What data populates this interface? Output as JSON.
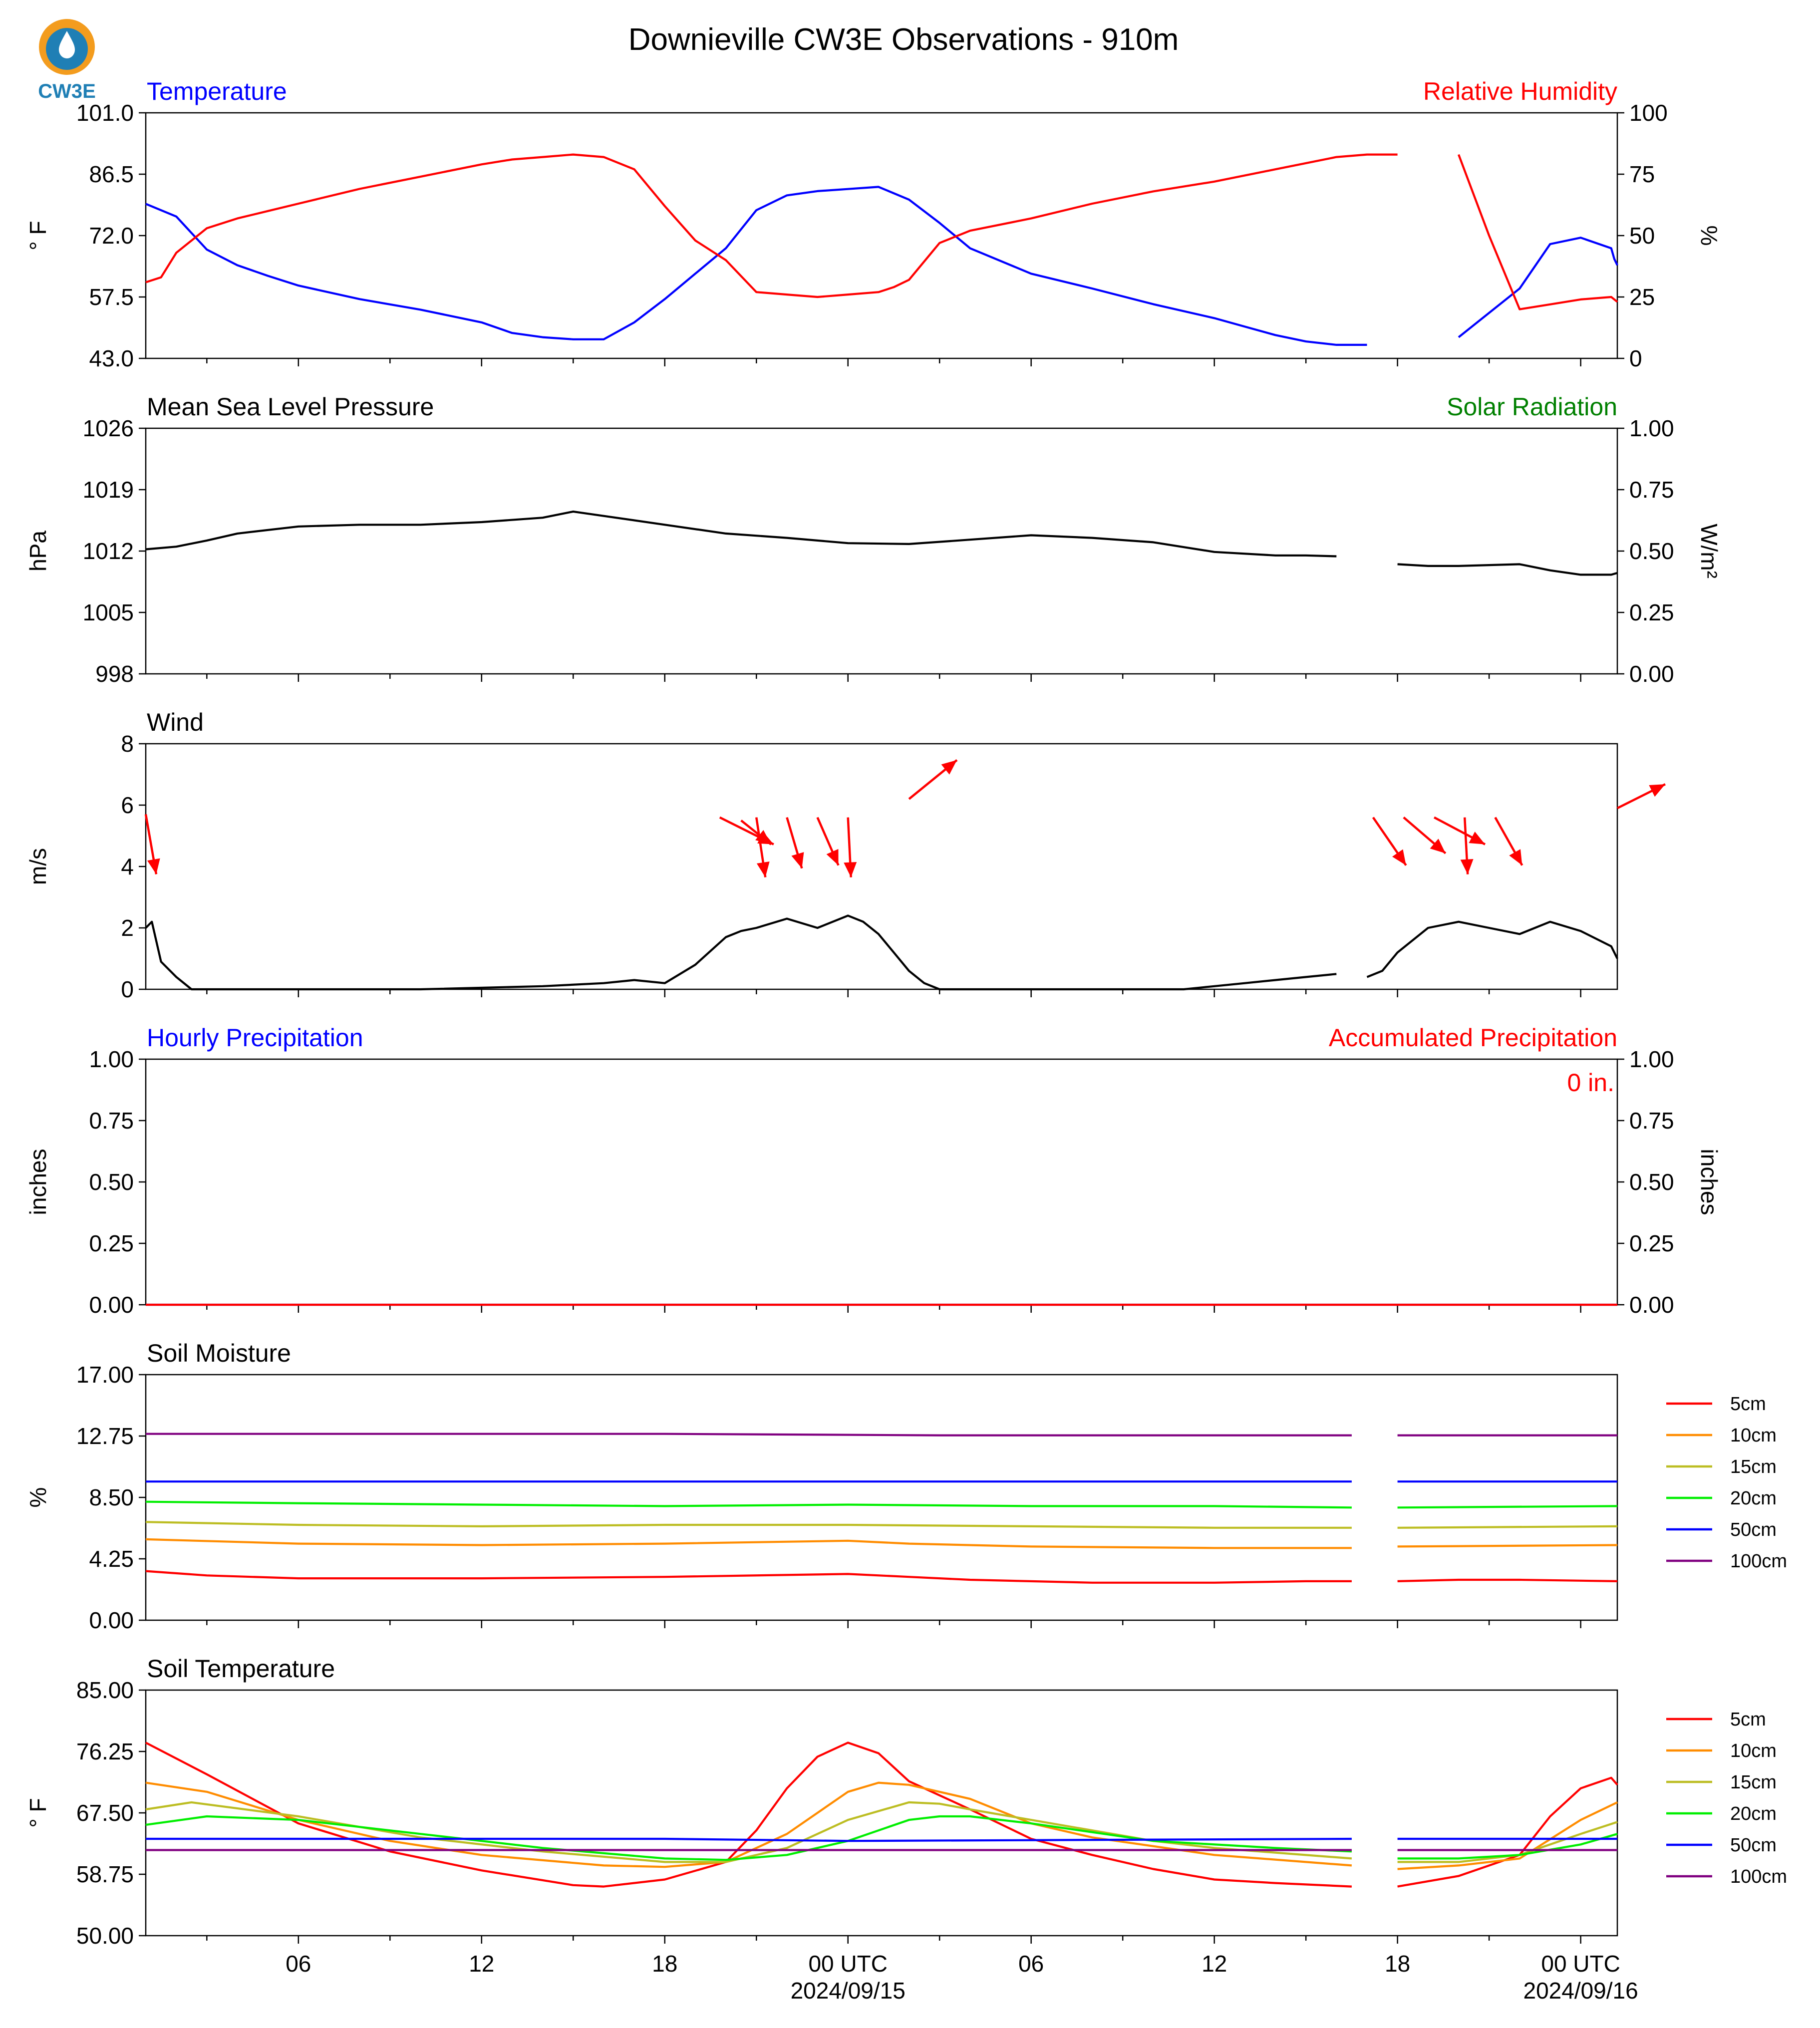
{
  "page": {
    "title": "Downieville CW3E Observations - 910m",
    "logo_text": "CW3E"
  },
  "colors": {
    "temperature": "#0000ff",
    "humidity": "#ff0000",
    "pressure": "#000000",
    "solar": "#008000",
    "wind_arrow": "#ff0000",
    "hourly_precip": "#0000ff",
    "accum_precip": "#ff0000",
    "logo_orange": "#f39c1e",
    "logo_blue": "#1f7fb5"
  },
  "x_axis": {
    "ticks": [
      {
        "hour": 6,
        "label": "06"
      },
      {
        "hour": 12,
        "label": "12"
      },
      {
        "hour": 18,
        "label": "18"
      },
      {
        "hour": 24,
        "label": "00 UTC",
        "sublabel": "2024/09/15"
      },
      {
        "hour": 30,
        "label": "06"
      },
      {
        "hour": 36,
        "label": "12"
      },
      {
        "hour": 42,
        "label": "18"
      },
      {
        "hour": 48,
        "label": "00 UTC",
        "sublabel": "2024/09/16"
      }
    ]
  },
  "chart_data": [
    {
      "type": "line",
      "title_left": "Temperature",
      "title_right": "Relative Humidity",
      "ylabel": "° F",
      "ylabel_right": "%",
      "ylim": [
        43.0,
        101.0
      ],
      "ylim_right": [
        0,
        100
      ],
      "yticks": [
        "43.0",
        "57.5",
        "72.0",
        "86.5",
        "101.0"
      ],
      "yticks_right": [
        "0",
        "25",
        "50",
        "75",
        "100"
      ],
      "series": [
        {
          "name": "Temperature",
          "axis": "left",
          "color": "#0000ff",
          "x": [
            1,
            2,
            3,
            4,
            5,
            6,
            8,
            10,
            12,
            13,
            14,
            15,
            16,
            17,
            18,
            19,
            20,
            21,
            22,
            23,
            24,
            25,
            26,
            27,
            28,
            30,
            32,
            34,
            36,
            37,
            38,
            39,
            40,
            41,
            42,
            44,
            46,
            47,
            48,
            49,
            49.1,
            49.2
          ],
          "y": [
            79.5,
            76.5,
            68.7,
            65.0,
            62.5,
            60.2,
            57.0,
            54.5,
            51.5,
            49.0,
            48.0,
            47.5,
            47.5,
            51.5,
            57.0,
            63.0,
            69.0,
            78.0,
            81.5,
            82.5,
            83.0,
            83.5,
            80.5,
            75.0,
            69.0,
            63.0,
            59.5,
            55.8,
            52.5,
            50.5,
            48.5,
            47.0,
            46.2,
            46.2,
            null,
            48.0,
            59.5,
            70.0,
            71.5,
            69.0,
            66.5,
            65.0
          ]
        },
        {
          "name": "Relative Humidity",
          "axis": "right",
          "color": "#ff0000",
          "x": [
            1,
            1.5,
            2,
            3,
            4,
            5,
            6,
            8,
            10,
            12,
            13,
            14,
            15,
            16,
            17,
            18,
            19,
            20,
            21,
            22,
            23,
            24,
            25,
            25.5,
            26,
            27,
            28,
            30,
            32,
            34,
            36,
            38,
            40,
            41,
            42,
            43,
            44,
            45,
            46,
            47,
            48,
            49,
            49.2
          ],
          "y": [
            31,
            33,
            43,
            53,
            57,
            60,
            63,
            69,
            74,
            79,
            81,
            82,
            83,
            82,
            77,
            62,
            48,
            40,
            27,
            26,
            25,
            26,
            27,
            29,
            32,
            47,
            52,
            57,
            63,
            68,
            72,
            77,
            82,
            83,
            83,
            null,
            83,
            50,
            20,
            22,
            24,
            25,
            23
          ]
        }
      ]
    },
    {
      "type": "line",
      "title_left": "Mean Sea Level Pressure",
      "title_right": "Solar Radiation",
      "ylabel": "hPa",
      "ylabel_right": "W/m²",
      "ylim": [
        998,
        1026
      ],
      "ylim_right": [
        0.0,
        1.0
      ],
      "yticks": [
        "998",
        "1005",
        "1012",
        "1019",
        "1026"
      ],
      "yticks_right": [
        "0.00",
        "0.25",
        "0.50",
        "0.75",
        "1.00"
      ],
      "series": [
        {
          "name": "Mean Sea Level Pressure",
          "axis": "left",
          "color": "#000000",
          "x": [
            1,
            2,
            3,
            4,
            6,
            8,
            10,
            12,
            14,
            15,
            16,
            18,
            20,
            22,
            24,
            26,
            28,
            30,
            32,
            34,
            36,
            38,
            39,
            40,
            41,
            42,
            43,
            44,
            46,
            47,
            48,
            49,
            49.2
          ],
          "y": [
            1012.2,
            1012.5,
            1013.2,
            1014.0,
            1014.8,
            1015.0,
            1015.0,
            1015.3,
            1015.8,
            1016.5,
            1016.0,
            1015.0,
            1014.0,
            1013.5,
            1012.9,
            1012.8,
            1013.3,
            1013.8,
            1013.5,
            1013.0,
            1011.9,
            1011.5,
            1011.5,
            1011.4,
            null,
            1010.5,
            1010.3,
            1010.3,
            1010.5,
            1009.8,
            1009.3,
            1009.3,
            1009.5
          ]
        }
      ]
    },
    {
      "type": "line",
      "title_left": "Wind",
      "ylabel": "m/s",
      "ylim": [
        0,
        8
      ],
      "yticks": [
        "0",
        "2",
        "4",
        "6",
        "8"
      ],
      "series": [
        {
          "name": "Wind",
          "axis": "left",
          "color": "#000000",
          "x": [
            1,
            1.2,
            1.5,
            2,
            2.5,
            5,
            10,
            14,
            16,
            17,
            18,
            19,
            20,
            20.5,
            21,
            22,
            23,
            24,
            24.5,
            25,
            25.5,
            26,
            26.5,
            27,
            27.5,
            35,
            36,
            37,
            38,
            39,
            40,
            40.5,
            41,
            41.5,
            42,
            43,
            44,
            45,
            46,
            47,
            48,
            49,
            49.2
          ],
          "y": [
            2.0,
            2.2,
            0.9,
            0.4,
            0.0,
            0.0,
            0.0,
            0.1,
            0.2,
            0.3,
            0.2,
            0.8,
            1.7,
            1.9,
            2.0,
            2.3,
            2.0,
            2.4,
            2.2,
            1.8,
            1.2,
            0.6,
            0.2,
            0.0,
            0.0,
            0.0,
            0.1,
            0.2,
            0.3,
            0.4,
            0.5,
            null,
            0.4,
            0.6,
            1.2,
            2.0,
            2.2,
            2.0,
            1.8,
            2.2,
            1.9,
            1.4,
            1.0
          ]
        },
        {
          "name": "Wind direction",
          "type": "arrows",
          "color": "#ff0000",
          "x": [
            1,
            19.8,
            20.5,
            21.0,
            22.0,
            23.0,
            24.0,
            26.0,
            41.2,
            42.2,
            43.2,
            44.2,
            45.2,
            49.2
          ],
          "y": [
            5.7,
            5.6,
            5.5,
            5.6,
            5.6,
            5.6,
            5.6,
            6.2,
            5.6,
            5.6,
            5.6,
            5.6,
            5.6,
            5.9
          ],
          "u": [
            0.35,
            1.8,
            1.0,
            0.3,
            0.5,
            0.7,
            0.1,
            1.6,
            1.1,
            1.4,
            1.7,
            0.1,
            0.9,
            1.6
          ],
          "v": [
            -2.0,
            -0.9,
            -0.8,
            -2.0,
            -1.7,
            -1.6,
            -2.0,
            1.3,
            -1.6,
            -1.2,
            -0.9,
            -1.9,
            -1.6,
            0.8
          ]
        }
      ]
    },
    {
      "type": "line",
      "title_left": "Hourly Precipitation",
      "title_right": "Accumulated Precipitation",
      "annotation": "0 in.",
      "ylabel": "inches",
      "ylabel_right": "inches",
      "ylim": [
        0.0,
        1.0
      ],
      "ylim_right": [
        0.0,
        1.0
      ],
      "yticks": [
        "0.00",
        "0.25",
        "0.50",
        "0.75",
        "1.00"
      ],
      "yticks_right": [
        "0.00",
        "0.25",
        "0.50",
        "0.75",
        "1.00"
      ],
      "series": [
        {
          "name": "Hourly Precipitation",
          "axis": "left",
          "color": "#0000ff",
          "x": [
            1,
            49.2
          ],
          "y": [
            0,
            0
          ]
        },
        {
          "name": "Accumulated Precipitation",
          "axis": "right",
          "color": "#ff0000",
          "x": [
            1,
            49.2
          ],
          "y": [
            0,
            0
          ]
        }
      ]
    },
    {
      "type": "line",
      "title_left": "Soil Moisture",
      "ylabel": "%",
      "ylim": [
        0.0,
        17.0
      ],
      "yticks": [
        "0.00",
        "4.25",
        "8.50",
        "12.75",
        "17.00"
      ],
      "series": [
        {
          "name": "5cm",
          "color": "#ff0000",
          "x": [
            1,
            3,
            6,
            12,
            18,
            24,
            26,
            28,
            32,
            36,
            39,
            40.5,
            41,
            42,
            44,
            46,
            49.2
          ],
          "y": [
            3.4,
            3.1,
            2.9,
            2.9,
            3.0,
            3.2,
            3.0,
            2.8,
            2.6,
            2.6,
            2.7,
            2.7,
            null,
            2.7,
            2.8,
            2.8,
            2.7
          ]
        },
        {
          "name": "10cm",
          "color": "#ff8c00",
          "x": [
            1,
            6,
            12,
            18,
            24,
            26,
            30,
            36,
            40.5,
            41,
            42,
            49.2
          ],
          "y": [
            5.6,
            5.3,
            5.2,
            5.3,
            5.5,
            5.3,
            5.1,
            5.0,
            5.0,
            null,
            5.1,
            5.2
          ]
        },
        {
          "name": "15cm",
          "color": "#bcbd22",
          "x": [
            1,
            6,
            12,
            18,
            24,
            30,
            36,
            40.5,
            41,
            42,
            49.2
          ],
          "y": [
            6.8,
            6.6,
            6.5,
            6.6,
            6.6,
            6.5,
            6.4,
            6.4,
            null,
            6.4,
            6.5
          ]
        },
        {
          "name": "20cm",
          "color": "#00ee00",
          "x": [
            1,
            6,
            12,
            18,
            24,
            30,
            36,
            40.5,
            41,
            42,
            49.2
          ],
          "y": [
            8.2,
            8.1,
            8.0,
            7.9,
            8.0,
            7.9,
            7.9,
            7.8,
            null,
            7.8,
            7.9
          ]
        },
        {
          "name": "50cm",
          "color": "#0000ff",
          "x": [
            1,
            24,
            40.5,
            41,
            42,
            49.2
          ],
          "y": [
            9.6,
            9.6,
            9.6,
            null,
            9.6,
            9.6
          ]
        },
        {
          "name": "100cm",
          "color": "#800080",
          "x": [
            1,
            18,
            27,
            40.5,
            41,
            42,
            49.2
          ],
          "y": [
            12.9,
            12.9,
            12.8,
            12.8,
            null,
            12.8,
            12.8
          ]
        }
      ]
    },
    {
      "type": "line",
      "title_left": "Soil Temperature",
      "ylabel": "° F",
      "ylim": [
        50.0,
        85.0
      ],
      "yticks": [
        "50.00",
        "58.75",
        "67.50",
        "76.25",
        "85.00"
      ],
      "series": [
        {
          "name": "5cm",
          "color": "#ff0000",
          "x": [
            1,
            3,
            6,
            9,
            12,
            15,
            16,
            18,
            20,
            21,
            22,
            23,
            24,
            25,
            26,
            28,
            30,
            32,
            34,
            36,
            38,
            40.5,
            41,
            42,
            44,
            46,
            47,
            48,
            49,
            49.2
          ],
          "y": [
            77.5,
            73.0,
            66.0,
            62.0,
            59.3,
            57.2,
            57.0,
            58.0,
            60.5,
            65.0,
            71.0,
            75.5,
            77.5,
            76.0,
            72.0,
            68.0,
            63.8,
            61.5,
            59.5,
            58.0,
            57.5,
            57.0,
            null,
            57.0,
            58.5,
            61.5,
            67.0,
            71.0,
            72.5,
            71.5
          ]
        },
        {
          "name": "10cm",
          "color": "#ff8c00",
          "x": [
            1,
            3,
            6,
            9,
            12,
            16,
            18,
            20,
            22,
            24,
            25,
            26,
            28,
            30,
            32,
            36,
            40.5,
            41,
            42,
            44,
            46,
            48,
            49.2
          ],
          "y": [
            71.8,
            70.5,
            66.5,
            63.5,
            61.5,
            60.0,
            59.8,
            60.5,
            64.5,
            70.5,
            71.8,
            71.5,
            69.5,
            66.0,
            64.0,
            61.5,
            60.0,
            null,
            59.5,
            60.0,
            61.0,
            66.5,
            69.0
          ]
        },
        {
          "name": "15cm",
          "color": "#bcbd22",
          "x": [
            1,
            2.5,
            6,
            10,
            14,
            18,
            20,
            22,
            24,
            26,
            27,
            28,
            30,
            34,
            36,
            40.5,
            41,
            42,
            44,
            46,
            48,
            49.2
          ],
          "y": [
            68.0,
            69.0,
            67.0,
            64.0,
            62.0,
            60.5,
            60.5,
            62.5,
            66.5,
            69.0,
            68.8,
            68.0,
            66.5,
            63.5,
            62.5,
            61.0,
            null,
            60.5,
            60.5,
            61.5,
            64.5,
            66.2
          ]
        },
        {
          "name": "20cm",
          "color": "#00ee00",
          "x": [
            1,
            3,
            6,
            10,
            14,
            18,
            20,
            22,
            24,
            26,
            27,
            28,
            30,
            34,
            38,
            40.5,
            41,
            42,
            44,
            46,
            48,
            49.2
          ],
          "y": [
            65.8,
            67.0,
            66.5,
            64.5,
            62.5,
            61.0,
            60.8,
            61.5,
            63.5,
            66.5,
            67.0,
            67.0,
            66.0,
            63.5,
            62.5,
            62.0,
            null,
            61.0,
            61.0,
            61.5,
            63.0,
            64.5
          ]
        },
        {
          "name": "50cm",
          "color": "#0000ff",
          "x": [
            1,
            18,
            24,
            40.5,
            41,
            42,
            49.2
          ],
          "y": [
            63.8,
            63.8,
            63.5,
            63.8,
            null,
            63.8,
            63.8
          ]
        },
        {
          "name": "100cm",
          "color": "#800080",
          "x": [
            1,
            24,
            40.5,
            41,
            42,
            49.2
          ],
          "y": [
            62.2,
            62.2,
            62.2,
            null,
            62.2,
            62.2
          ]
        }
      ]
    }
  ]
}
